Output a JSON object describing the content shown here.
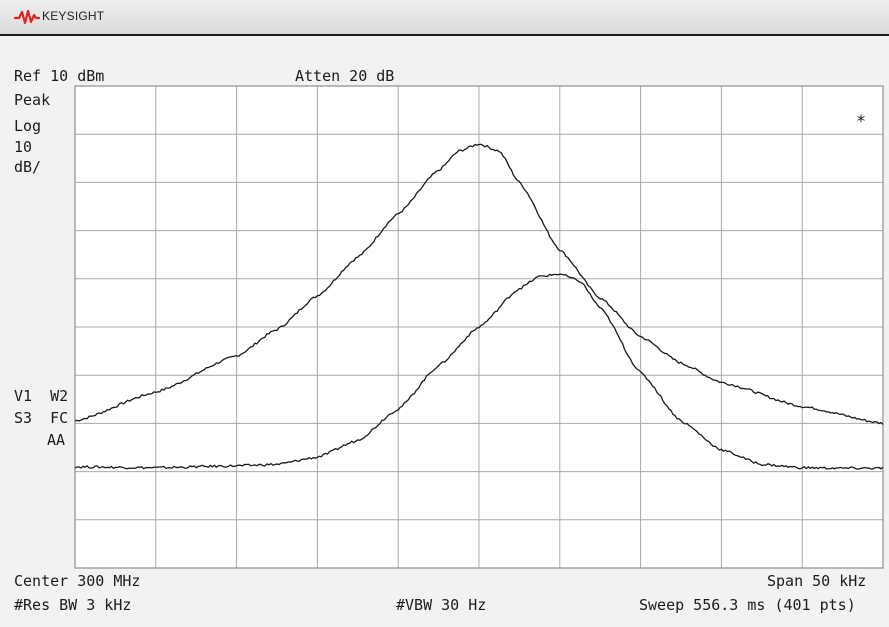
{
  "brand": {
    "name": "KEYSIGHT",
    "logo_icon": "keysight-wave-icon"
  },
  "header": {
    "ref_level": "Ref 10 dBm",
    "attenuation": "Atten 20 dB"
  },
  "left_panel": {
    "detector": "Peak",
    "scale_type": "Log",
    "scale_value": "10",
    "scale_unit": "dB/",
    "trace_flags_1": "V1  W2",
    "trace_flags_2": "S3  FC",
    "trace_flags_3": "AA"
  },
  "marker_symbol": "*",
  "footer": {
    "center": "Center 300 MHz",
    "span": "Span 50 kHz",
    "res_bw": "#Res BW 3 kHz",
    "vbw": "#VBW 30 Hz",
    "sweep": "Sweep 556.3 ms (401 pts)"
  },
  "display": {
    "ref_level_dbm": 10,
    "scale_db_per_div": 10,
    "divisions_x": 10,
    "divisions_y": 10,
    "center_mhz": 300,
    "span_khz": 50,
    "trace_color": "#1a1a1a",
    "grid_color": "#a9a9a9"
  },
  "traces": [
    {
      "id": "trace-1",
      "freq_offset_khz": [
        -25,
        -20,
        -15,
        -12.5,
        -10,
        -7.5,
        -5,
        -2.5,
        -1.25,
        0,
        1.25,
        2.5,
        5,
        7.5,
        10,
        12.5,
        15,
        20,
        25
      ],
      "amplitude_dbm": [
        -59.5,
        -53.5,
        -46,
        -40.5,
        -33.5,
        -25.5,
        -16.5,
        -7.5,
        -3.5,
        -2,
        -3.5,
        -10,
        -24,
        -34,
        -42,
        -47.5,
        -51.5,
        -56.5,
        -60
      ]
    },
    {
      "id": "trace-2",
      "freq_offset_khz": [
        -25,
        -20,
        -15,
        -12.5,
        -10,
        -7.5,
        -5,
        -2.5,
        0,
        2.5,
        3.75,
        5,
        6.25,
        7.5,
        10,
        12.5,
        15,
        17.5,
        20,
        22.5,
        25
      ],
      "amplitude_dbm": [
        -69,
        -69.2,
        -68.8,
        -68.5,
        -67,
        -63.5,
        -57,
        -48,
        -40,
        -32,
        -29.5,
        -29,
        -30.5,
        -36,
        -49.5,
        -59.5,
        -65.5,
        -68.5,
        -69.2,
        -69.3,
        -69.3
      ]
    }
  ]
}
